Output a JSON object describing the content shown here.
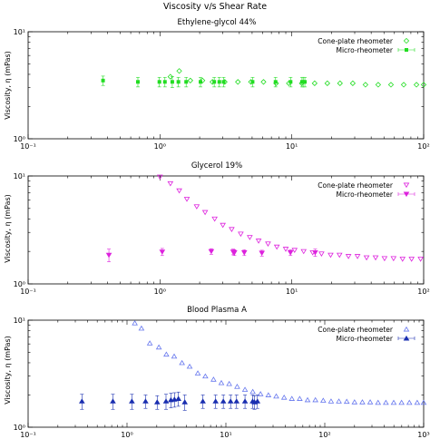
{
  "page_title": "Viscosity v/s Shear Rate",
  "y_axis_label": "Viscosity, η (mPas)",
  "colors": {
    "ethylene_glycol": "#22dd22",
    "glycerol": "#dd22dd",
    "plasma_cone": "#6677ee",
    "plasma_micro": "#1a2fb0"
  },
  "chart_data": [
    {
      "type": "scatter",
      "title": "Ethylene-glycol 44%",
      "xscale": "log",
      "yscale": "log",
      "xlim": [
        0.1,
        100
      ],
      "ylim": [
        1,
        10
      ],
      "x_ticks": [
        "10⁻¹",
        "10⁰",
        "10¹",
        "10²"
      ],
      "y_ticks": [
        "10⁰",
        "10¹"
      ],
      "legend_position": "top-right",
      "series": [
        {
          "name": "Cone-plate rheometer",
          "marker": "diamond-open",
          "x": [
            1.2,
            1.4,
            1.7,
            2.1,
            2.5,
            3.1,
            3.9,
            4.9,
            6.1,
            7.6,
            9.5,
            11.9,
            14.9,
            18.6,
            23.2,
            29,
            36.2,
            45.2,
            56.5,
            70.6,
            88.2,
            100
          ],
          "y": [
            3.8,
            4.3,
            3.5,
            3.5,
            3.4,
            3.4,
            3.4,
            3.4,
            3.4,
            3.3,
            3.3,
            3.3,
            3.3,
            3.3,
            3.3,
            3.3,
            3.2,
            3.2,
            3.2,
            3.2,
            3.2,
            3.2
          ]
        },
        {
          "name": "Micro-rheometer",
          "marker": "filled-square-errorbar",
          "x": [
            0.37,
            0.68,
            0.99,
            1.09,
            1.24,
            1.38,
            1.58,
            2.03,
            2.58,
            2.82,
            3.04,
            5.04,
            7.53,
            9.79,
            11.95,
            12.2,
            12.56
          ],
          "y": [
            3.5,
            3.4,
            3.4,
            3.4,
            3.4,
            3.4,
            3.4,
            3.4,
            3.4,
            3.4,
            3.4,
            3.4,
            3.4,
            3.4,
            3.4,
            3.4,
            3.4
          ],
          "err": [
            0.35,
            0.35,
            0.35,
            0.35,
            0.4,
            0.35,
            0.35,
            0.35,
            0.35,
            0.35,
            0.35,
            0.35,
            0.35,
            0.35,
            0.35,
            0.35,
            0.35
          ]
        }
      ]
    },
    {
      "type": "scatter",
      "title": "Glycerol 19%",
      "xscale": "log",
      "yscale": "log",
      "xlim": [
        0.1,
        100
      ],
      "ylim": [
        1,
        10
      ],
      "x_ticks": [
        "10⁻¹",
        "10⁰",
        "10¹",
        "10²"
      ],
      "y_ticks": [
        "10⁰",
        "10¹"
      ],
      "legend_position": "top-right",
      "series": [
        {
          "name": "Cone-plate rheometer",
          "marker": "triangle-down-open",
          "x": [
            1.0,
            1.2,
            1.4,
            1.6,
            1.9,
            2.2,
            2.6,
            3.0,
            3.5,
            4.1,
            4.8,
            5.6,
            6.6,
            7.7,
            9.0,
            10.5,
            12.3,
            14.4,
            16.8,
            19.7,
            23.0,
            26.9,
            31.5,
            36.9,
            43.2,
            50.5,
            59.1,
            69.2,
            81.0,
            94.8
          ],
          "y": [
            9.8,
            8.5,
            7.3,
            6.1,
            5.2,
            4.6,
            4.0,
            3.5,
            3.2,
            2.9,
            2.7,
            2.5,
            2.35,
            2.2,
            2.1,
            2.05,
            2.0,
            1.95,
            1.9,
            1.85,
            1.85,
            1.8,
            1.8,
            1.75,
            1.75,
            1.72,
            1.72,
            1.7,
            1.7,
            1.7
          ]
        },
        {
          "name": "Micro-rheometer",
          "marker": "filled-triangle-down-errorbar",
          "x": [
            0.41,
            1.04,
            2.45,
            3.59,
            3.67,
            4.36,
            5.93,
            9.77,
            15.04
          ],
          "y": [
            1.85,
            1.98,
            2.0,
            1.98,
            1.95,
            1.95,
            1.93,
            1.95,
            1.95
          ],
          "err": [
            0.25,
            0.15,
            0.12,
            0.12,
            0.12,
            0.12,
            0.12,
            0.12,
            0.15
          ]
        }
      ]
    },
    {
      "type": "scatter",
      "title": "Blood Plasma A",
      "xscale": "log",
      "yscale": "log",
      "xlim": [
        0.1,
        1000
      ],
      "ylim": [
        1,
        10
      ],
      "x_ticks": [
        "10⁻¹",
        "10⁰",
        "10¹",
        "10²",
        "10³"
      ],
      "y_ticks": [
        "10⁰",
        "10¹"
      ],
      "legend_position": "top-right",
      "series": [
        {
          "name": "Cone-plate rheometer",
          "marker": "triangle-up-open",
          "x": [
            1.2,
            1.4,
            1.7,
            2.1,
            2.5,
            3.0,
            3.6,
            4.3,
            5.2,
            6.2,
            7.5,
            9.0,
            10.8,
            13.0,
            15.6,
            18.7,
            22.4,
            26.9,
            32.3,
            38.8,
            46.5,
            55.8,
            67,
            80.4,
            96.5,
            115.8,
            139,
            166.8,
            200,
            240,
            288,
            346,
            415,
            498,
            598,
            717,
            861,
            1000
          ],
          "y": [
            9.4,
            8.4,
            6.1,
            5.6,
            4.8,
            4.6,
            4.0,
            3.7,
            3.2,
            3.0,
            2.8,
            2.6,
            2.55,
            2.4,
            2.25,
            2.15,
            2.05,
            2.0,
            1.95,
            1.9,
            1.85,
            1.85,
            1.8,
            1.8,
            1.78,
            1.75,
            1.75,
            1.74,
            1.72,
            1.72,
            1.72,
            1.7,
            1.7,
            1.7,
            1.7,
            1.7,
            1.7,
            1.7
          ]
        },
        {
          "name": "Micro-rheometer",
          "marker": "filled-triangle-up-errorbar",
          "x": [
            0.35,
            0.72,
            1.12,
            1.54,
            2.02,
            2.48,
            2.78,
            3.02,
            3.31,
            3.84,
            5.85,
            7.87,
            9.42,
            11.16,
            12.82,
            15.61,
            18.64,
            19.47,
            20.84
          ],
          "y": [
            1.75,
            1.75,
            1.75,
            1.75,
            1.72,
            1.75,
            1.8,
            1.82,
            1.85,
            1.72,
            1.75,
            1.75,
            1.75,
            1.75,
            1.75,
            1.75,
            1.75,
            1.72,
            1.75
          ],
          "err": [
            0.28,
            0.28,
            0.28,
            0.25,
            0.25,
            0.28,
            0.28,
            0.28,
            0.28,
            0.28,
            0.25,
            0.25,
            0.25,
            0.25,
            0.25,
            0.25,
            0.25,
            0.25,
            0.25
          ]
        }
      ]
    }
  ]
}
